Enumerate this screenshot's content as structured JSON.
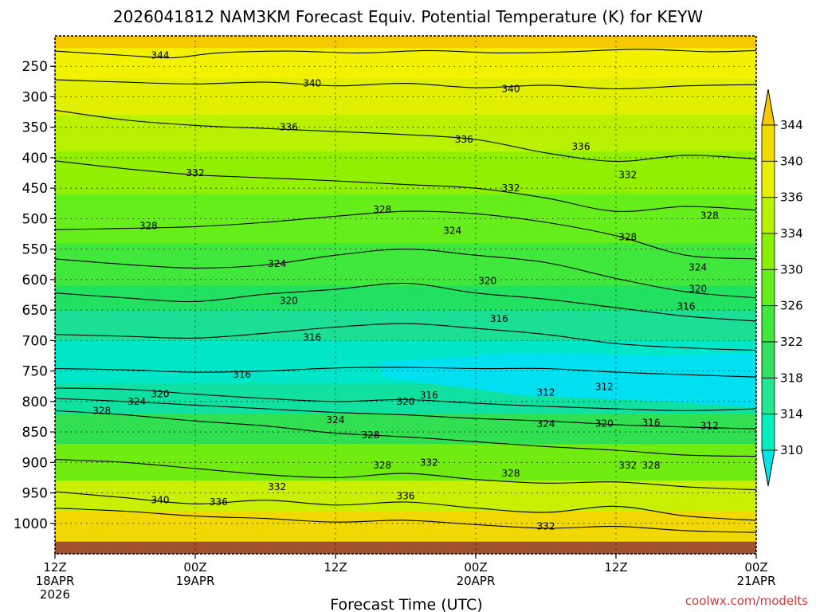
{
  "chart_data": {
    "type": "heatmap",
    "title": "2026041812 NAM3KM Forecast Equiv. Potential Temperature (K) for KEYW",
    "xlabel": "Forecast Time (UTC)",
    "ylabel": "",
    "y_axis": {
      "unit": "hPa",
      "range": [
        1050,
        200
      ],
      "ticks": [
        250,
        300,
        350,
        400,
        450,
        500,
        550,
        600,
        650,
        700,
        750,
        800,
        850,
        900,
        950,
        1000
      ],
      "tick_labels": [
        "250",
        "300",
        "350",
        "400",
        "450",
        "500",
        "550",
        "600",
        "650",
        "700",
        "750",
        "800",
        "850",
        "900",
        "950",
        "1000"
      ]
    },
    "x_axis": {
      "unit": "forecast hour",
      "range": [
        0,
        60
      ],
      "ticks": [
        0,
        12,
        24,
        36,
        48,
        60
      ],
      "tick_labels": [
        {
          "line1": "12Z",
          "line2": "18APR",
          "line3": "2026"
        },
        {
          "line1": "00Z",
          "line2": "19APR",
          "line3": ""
        },
        {
          "line1": "12Z",
          "line2": "",
          "line3": ""
        },
        {
          "line1": "00Z",
          "line2": "20APR",
          "line3": ""
        },
        {
          "line1": "12Z",
          "line2": "",
          "line3": ""
        },
        {
          "line1": "00Z",
          "line2": "21APR",
          "line3": ""
        }
      ]
    },
    "colorbar": {
      "levels": [
        310,
        314,
        318,
        322,
        326,
        330,
        334,
        336,
        340,
        344
      ],
      "labels": [
        "310",
        "314",
        "318",
        "322",
        "326",
        "330",
        "334",
        "336",
        "340",
        "344"
      ],
      "colors": [
        "#00e5e5",
        "#00f0c0",
        "#22e690",
        "#33e060",
        "#3fe83a",
        "#66ee1a",
        "#88f000",
        "#b8f200",
        "#e8f200",
        "#f0da00",
        "#f5c800"
      ]
    },
    "fill_bands": [
      {
        "top": 200,
        "bottom": 220,
        "color": "#f5c800"
      },
      {
        "top": 220,
        "bottom": 270,
        "color": "#f2f200"
      },
      {
        "top": 270,
        "bottom": 330,
        "color": "#e0f000"
      },
      {
        "top": 330,
        "bottom": 390,
        "color": "#b8f200"
      },
      {
        "top": 390,
        "bottom": 460,
        "color": "#90f000"
      },
      {
        "top": 460,
        "bottom": 540,
        "color": "#66ee1a"
      },
      {
        "top": 540,
        "bottom": 610,
        "color": "#3fe83a"
      },
      {
        "top": 610,
        "bottom": 650,
        "color": "#22e060"
      },
      {
        "top": 650,
        "bottom": 700,
        "color": "#1adf95"
      },
      {
        "top": 700,
        "bottom": 770,
        "color": "#00e6c8"
      },
      {
        "top": 770,
        "bottom": 820,
        "color": "#10e0a0"
      },
      {
        "top": 820,
        "bottom": 870,
        "color": "#30e050"
      },
      {
        "top": 870,
        "bottom": 930,
        "color": "#70ec10"
      },
      {
        "top": 930,
        "bottom": 980,
        "color": "#c8f000"
      },
      {
        "top": 980,
        "bottom": 1030,
        "color": "#f0d800"
      }
    ],
    "cold_core": [
      {
        "hour": 28,
        "top": 735,
        "bottom": 760
      },
      {
        "hour": 40,
        "top": 720,
        "bottom": 790
      },
      {
        "hour": 52,
        "top": 725,
        "bottom": 800
      },
      {
        "hour": 60,
        "top": 720,
        "bottom": 810
      }
    ],
    "ground": {
      "top": 1030,
      "color": "#a0522d"
    },
    "contours": [
      {
        "level": 344,
        "points": [
          [
            0,
            225
          ],
          [
            6,
            232
          ],
          [
            10,
            236
          ],
          [
            14,
            228
          ],
          [
            20,
            225
          ],
          [
            26,
            228
          ],
          [
            32,
            224
          ],
          [
            38,
            228
          ],
          [
            44,
            226
          ],
          [
            50,
            222
          ],
          [
            56,
            226
          ],
          [
            60,
            224
          ]
        ]
      },
      {
        "level": 340,
        "points": [
          [
            0,
            272
          ],
          [
            6,
            276
          ],
          [
            12,
            279
          ],
          [
            18,
            276
          ],
          [
            24,
            282
          ],
          [
            30,
            278
          ],
          [
            36,
            285
          ],
          [
            42,
            281
          ],
          [
            48,
            287
          ],
          [
            54,
            282
          ],
          [
            60,
            280
          ]
        ]
      },
      {
        "level": 336,
        "points": [
          [
            0,
            322
          ],
          [
            6,
            338
          ],
          [
            12,
            347
          ],
          [
            18,
            352
          ],
          [
            24,
            357
          ],
          [
            30,
            362
          ],
          [
            36,
            370
          ],
          [
            42,
            392
          ],
          [
            48,
            406
          ],
          [
            54,
            396
          ],
          [
            60,
            402
          ]
        ]
      },
      {
        "level": 332,
        "points": [
          [
            0,
            405
          ],
          [
            6,
            418
          ],
          [
            12,
            428
          ],
          [
            18,
            433
          ],
          [
            24,
            438
          ],
          [
            30,
            444
          ],
          [
            36,
            450
          ],
          [
            42,
            466
          ],
          [
            48,
            488
          ],
          [
            54,
            480
          ],
          [
            60,
            486
          ]
        ]
      },
      {
        "level": 328,
        "points": [
          [
            0,
            518
          ],
          [
            6,
            516
          ],
          [
            12,
            513
          ],
          [
            18,
            506
          ],
          [
            24,
            496
          ],
          [
            30,
            488
          ],
          [
            36,
            492
          ],
          [
            42,
            506
          ],
          [
            48,
            528
          ],
          [
            54,
            560
          ],
          [
            60,
            566
          ]
        ]
      },
      {
        "level": 324,
        "points": [
          [
            0,
            566
          ],
          [
            6,
            575
          ],
          [
            12,
            581
          ],
          [
            18,
            576
          ],
          [
            24,
            560
          ],
          [
            30,
            550
          ],
          [
            36,
            560
          ],
          [
            42,
            572
          ],
          [
            48,
            598
          ],
          [
            54,
            620
          ],
          [
            60,
            630
          ]
        ]
      },
      {
        "level": 320,
        "points": [
          [
            0,
            622
          ],
          [
            6,
            630
          ],
          [
            12,
            636
          ],
          [
            18,
            624
          ],
          [
            24,
            616
          ],
          [
            30,
            606
          ],
          [
            36,
            622
          ],
          [
            42,
            632
          ],
          [
            48,
            646
          ],
          [
            54,
            660
          ],
          [
            60,
            668
          ]
        ]
      },
      {
        "level": 316,
        "points": [
          [
            0,
            690
          ],
          [
            6,
            693
          ],
          [
            12,
            696
          ],
          [
            18,
            688
          ],
          [
            24,
            678
          ],
          [
            30,
            672
          ],
          [
            36,
            680
          ],
          [
            42,
            690
          ],
          [
            48,
            705
          ],
          [
            54,
            712
          ],
          [
            60,
            716
          ]
        ]
      },
      {
        "level": 316,
        "points": [
          [
            0,
            746
          ],
          [
            6,
            748
          ],
          [
            12,
            752
          ],
          [
            18,
            750
          ],
          [
            24,
            745
          ],
          [
            30,
            744
          ],
          [
            36,
            746
          ],
          [
            42,
            746
          ],
          [
            48,
            752
          ],
          [
            54,
            756
          ],
          [
            60,
            760
          ]
        ]
      },
      {
        "level": 320,
        "points": [
          [
            0,
            778
          ],
          [
            6,
            780
          ],
          [
            12,
            788
          ],
          [
            18,
            795
          ],
          [
            24,
            800
          ],
          [
            30,
            797
          ],
          [
            36,
            803
          ],
          [
            42,
            808
          ],
          [
            48,
            812
          ],
          [
            54,
            815
          ],
          [
            60,
            812
          ]
        ]
      },
      {
        "level": 324,
        "points": [
          [
            0,
            795
          ],
          [
            6,
            800
          ],
          [
            12,
            806
          ],
          [
            18,
            812
          ],
          [
            24,
            818
          ],
          [
            30,
            822
          ],
          [
            36,
            828
          ],
          [
            42,
            832
          ],
          [
            48,
            838
          ],
          [
            54,
            842
          ],
          [
            60,
            845
          ]
        ]
      },
      {
        "level": 328,
        "points": [
          [
            0,
            815
          ],
          [
            6,
            822
          ],
          [
            12,
            832
          ],
          [
            18,
            840
          ],
          [
            24,
            852
          ],
          [
            30,
            858
          ],
          [
            36,
            866
          ],
          [
            42,
            874
          ],
          [
            48,
            880
          ],
          [
            54,
            888
          ],
          [
            60,
            890
          ]
        ]
      },
      {
        "level": 332,
        "points": [
          [
            0,
            895
          ],
          [
            6,
            900
          ],
          [
            12,
            910
          ],
          [
            18,
            920
          ],
          [
            24,
            925
          ],
          [
            30,
            918
          ],
          [
            36,
            928
          ],
          [
            42,
            934
          ],
          [
            48,
            932
          ],
          [
            54,
            940
          ],
          [
            60,
            945
          ]
        ]
      },
      {
        "level": 336,
        "points": [
          [
            0,
            948
          ],
          [
            6,
            958
          ],
          [
            12,
            968
          ],
          [
            18,
            962
          ],
          [
            24,
            970
          ],
          [
            30,
            965
          ],
          [
            36,
            975
          ],
          [
            42,
            982
          ],
          [
            48,
            972
          ],
          [
            54,
            988
          ],
          [
            60,
            995
          ]
        ]
      },
      {
        "level": 340,
        "points": [
          [
            0,
            975
          ],
          [
            6,
            980
          ],
          [
            12,
            988
          ],
          [
            18,
            992
          ],
          [
            24,
            998
          ],
          [
            30,
            995
          ],
          [
            36,
            1002
          ],
          [
            42,
            1008
          ],
          [
            48,
            1005
          ],
          [
            54,
            1012
          ],
          [
            60,
            1015
          ]
        ]
      }
    ],
    "contour_labels": [
      {
        "text": "344",
        "hour": 9,
        "p": 232
      },
      {
        "text": "340",
        "hour": 22,
        "p": 278
      },
      {
        "text": "340",
        "hour": 39,
        "p": 287
      },
      {
        "text": "336",
        "hour": 20,
        "p": 350
      },
      {
        "text": "336",
        "hour": 35,
        "p": 370
      },
      {
        "text": "336",
        "hour": 45,
        "p": 382
      },
      {
        "text": "332",
        "hour": 12,
        "p": 425
      },
      {
        "text": "332",
        "hour": 39,
        "p": 450
      },
      {
        "text": "332",
        "hour": 49,
        "p": 428
      },
      {
        "text": "328",
        "hour": 8,
        "p": 512
      },
      {
        "text": "328",
        "hour": 28,
        "p": 485
      },
      {
        "text": "328",
        "hour": 49,
        "p": 530
      },
      {
        "text": "328",
        "hour": 56,
        "p": 495
      },
      {
        "text": "324",
        "hour": 19,
        "p": 574
      },
      {
        "text": "324",
        "hour": 34,
        "p": 520
      },
      {
        "text": "324",
        "hour": 55,
        "p": 580
      },
      {
        "text": "320",
        "hour": 20,
        "p": 635
      },
      {
        "text": "320",
        "hour": 37,
        "p": 602
      },
      {
        "text": "320",
        "hour": 55,
        "p": 615
      },
      {
        "text": "316",
        "hour": 22,
        "p": 695
      },
      {
        "text": "316",
        "hour": 38,
        "p": 664
      },
      {
        "text": "316",
        "hour": 54,
        "p": 644
      },
      {
        "text": "316",
        "hour": 16,
        "p": 756
      },
      {
        "text": "316",
        "hour": 32,
        "p": 790
      },
      {
        "text": "316",
        "hour": 51,
        "p": 835
      },
      {
        "text": "312",
        "hour": 42,
        "p": 785
      },
      {
        "text": "312",
        "hour": 47,
        "p": 776
      },
      {
        "text": "312",
        "hour": 56,
        "p": 840
      },
      {
        "text": "320",
        "hour": 9,
        "p": 788
      },
      {
        "text": "320",
        "hour": 30,
        "p": 800
      },
      {
        "text": "320",
        "hour": 47,
        "p": 836
      },
      {
        "text": "324",
        "hour": 7,
        "p": 800
      },
      {
        "text": "324",
        "hour": 24,
        "p": 830
      },
      {
        "text": "324",
        "hour": 42,
        "p": 837
      },
      {
        "text": "328",
        "hour": 4,
        "p": 815
      },
      {
        "text": "328",
        "hour": 27,
        "p": 855
      },
      {
        "text": "328",
        "hour": 28,
        "p": 905
      },
      {
        "text": "328",
        "hour": 39,
        "p": 918
      },
      {
        "text": "328",
        "hour": 51,
        "p": 905
      },
      {
        "text": "332",
        "hour": 32,
        "p": 900
      },
      {
        "text": "332",
        "hour": 19,
        "p": 940
      },
      {
        "text": "332",
        "hour": 49,
        "p": 905
      },
      {
        "text": "332",
        "hour": 42,
        "p": 1005
      },
      {
        "text": "336",
        "hour": 14,
        "p": 965
      },
      {
        "text": "336",
        "hour": 30,
        "p": 955
      },
      {
        "text": "340",
        "hour": 9,
        "p": 962
      }
    ]
  },
  "credit": "coolwx.com/modelts"
}
